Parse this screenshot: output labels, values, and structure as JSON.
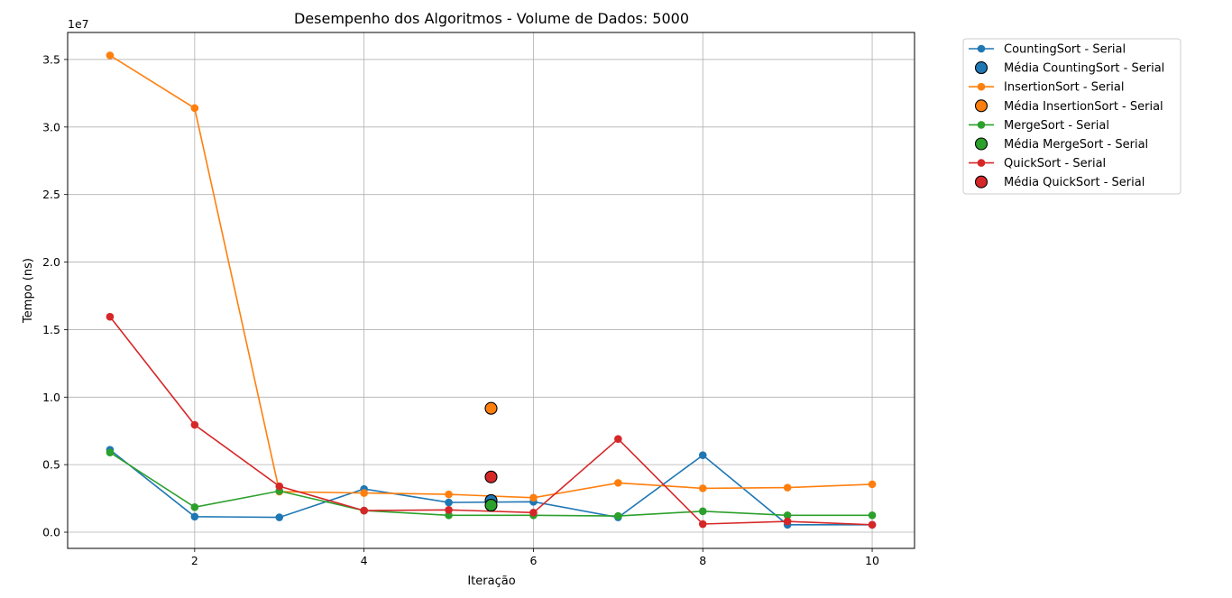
{
  "chart_data": {
    "type": "line",
    "title": "Desempenho dos Algoritmos - Volume de Dados: 5000",
    "xlabel": "Iteração",
    "ylabel": "Tempo (ns)",
    "y_offset_label": "1e7",
    "xlim": [
      0.5,
      10.5
    ],
    "ylim": [
      -1200000,
      37000000
    ],
    "x_ticks": [
      2,
      4,
      6,
      8,
      10
    ],
    "y_ticks": [
      0,
      5000000,
      10000000,
      15000000,
      20000000,
      25000000,
      30000000,
      35000000
    ],
    "y_tick_labels": [
      "0.0",
      "0.5",
      "1.0",
      "1.5",
      "2.0",
      "2.5",
      "3.0",
      "3.5"
    ],
    "grid": true,
    "legend_position": "outside-top-right",
    "x": [
      1,
      2,
      3,
      4,
      5,
      6,
      7,
      8,
      9,
      10
    ],
    "series": [
      {
        "name": "CountingSort - Serial",
        "mean_name": "Média CountingSort - Serial",
        "color": "#1f77b4",
        "values": [
          6100000,
          1150000,
          1100000,
          3200000,
          2200000,
          2250000,
          1100000,
          5700000,
          550000,
          550000
        ],
        "mean": {
          "x": 5.5,
          "y": 2345000
        }
      },
      {
        "name": "InsertionSort - Serial",
        "mean_name": "Média InsertionSort - Serial",
        "color": "#ff7f0e",
        "values": [
          35300000,
          31400000,
          3000000,
          2900000,
          2800000,
          2550000,
          3650000,
          3250000,
          3300000,
          3550000
        ],
        "mean": {
          "x": 5.5,
          "y": 9170000
        }
      },
      {
        "name": "MergeSort - Serial",
        "mean_name": "Média MergeSort - Serial",
        "color": "#2ca02c",
        "values": [
          5900000,
          1850000,
          3050000,
          1600000,
          1250000,
          1250000,
          1200000,
          1550000,
          1250000,
          1250000
        ],
        "mean": {
          "x": 5.5,
          "y": 2000000
        }
      },
      {
        "name": "QuickSort - Serial",
        "mean_name": "Média QuickSort - Serial",
        "color": "#d62728",
        "values": [
          15950000,
          7950000,
          3400000,
          1600000,
          1650000,
          1450000,
          6900000,
          600000,
          800000,
          550000
        ],
        "mean": {
          "x": 5.5,
          "y": 4090000
        }
      }
    ]
  }
}
